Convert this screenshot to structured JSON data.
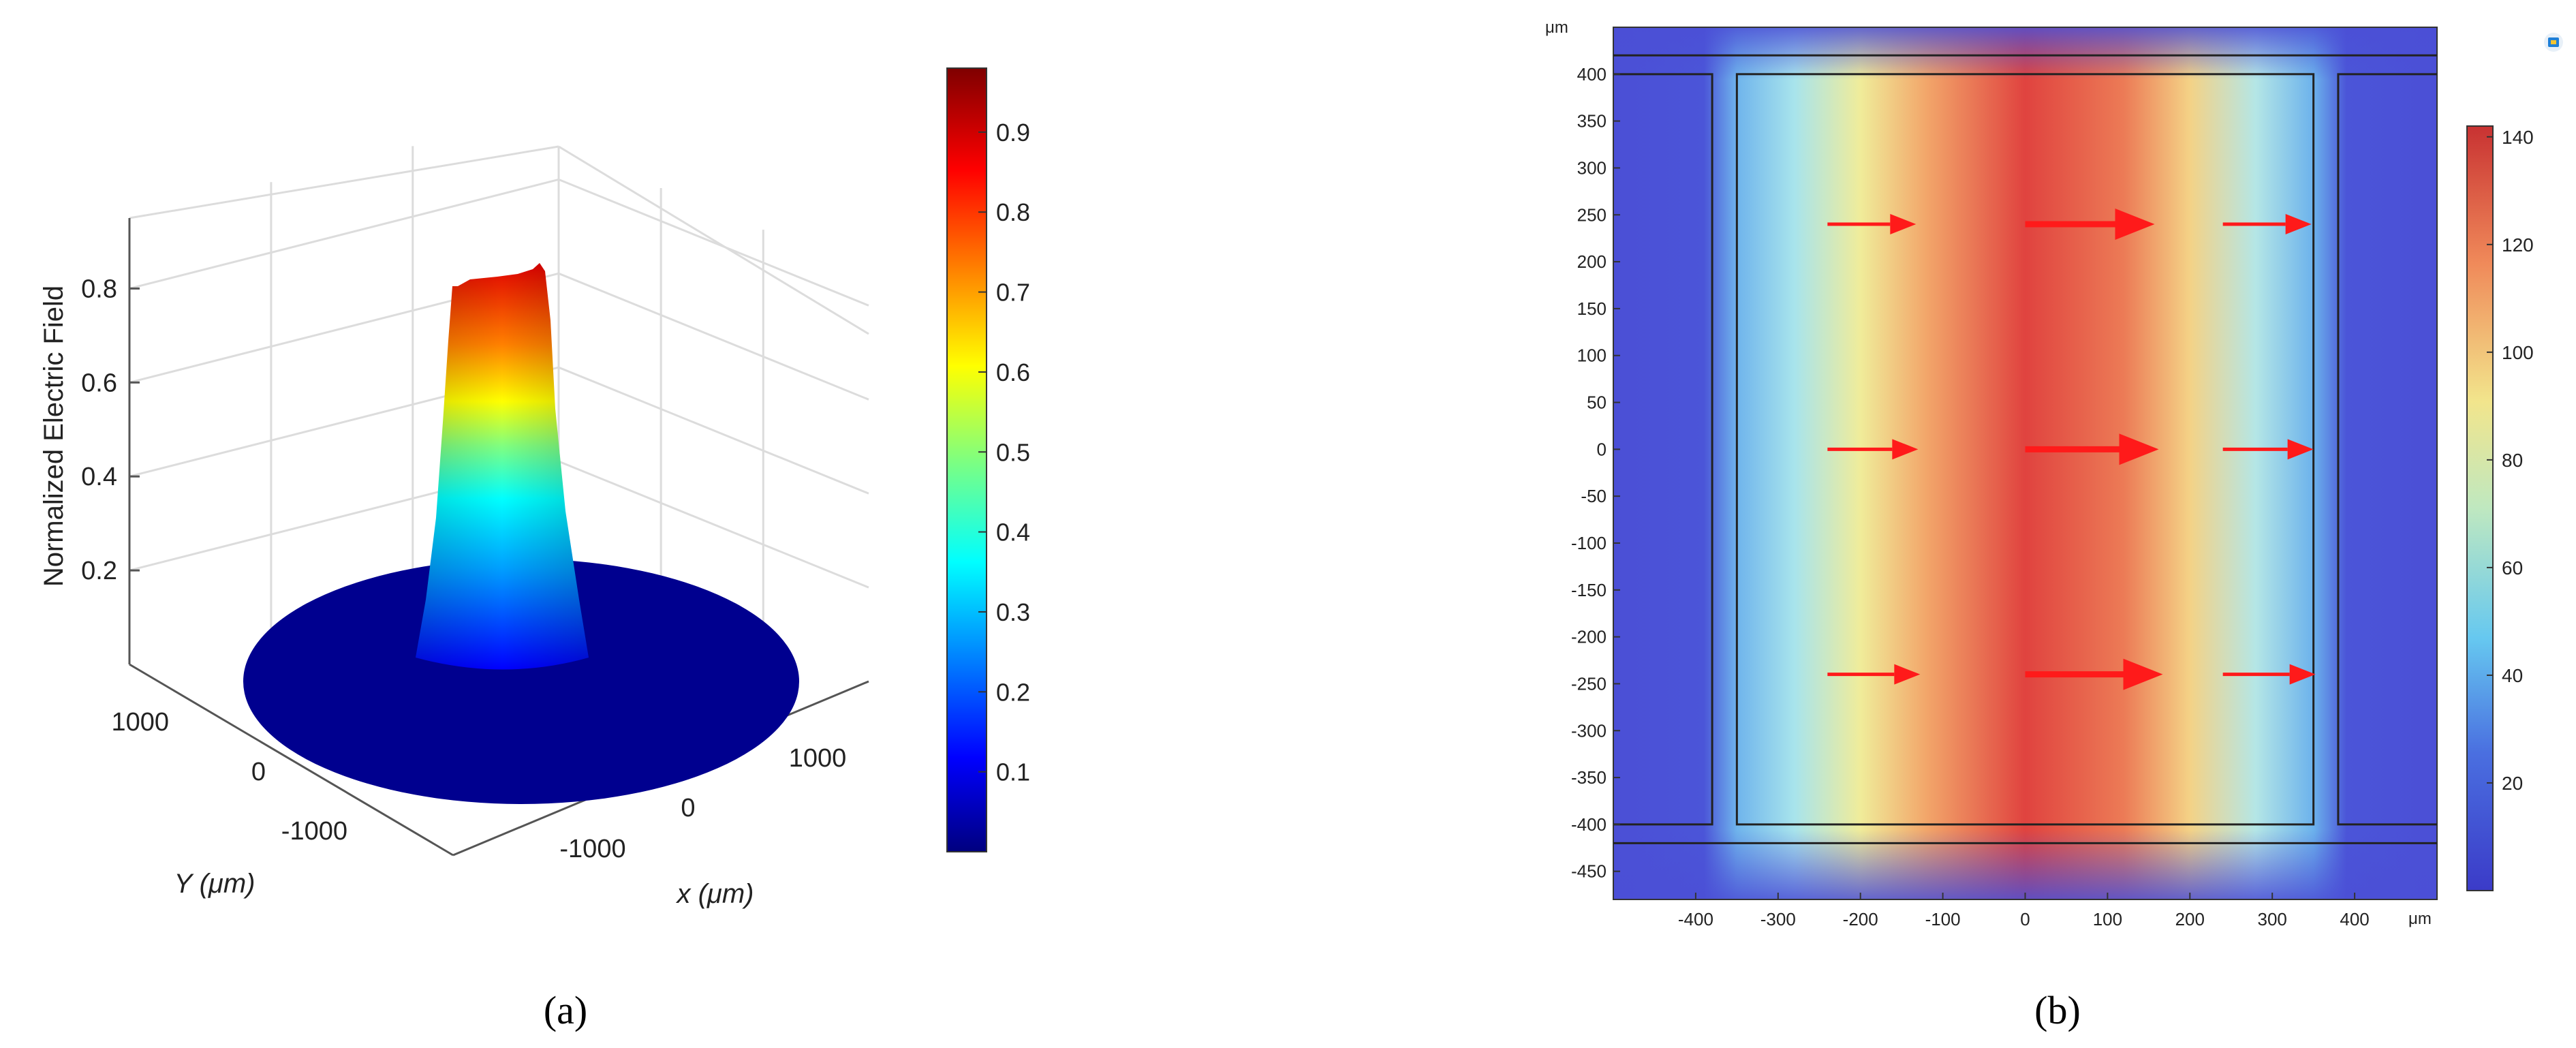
{
  "chart_data": [
    {
      "panel": "(a)",
      "type": "surface3d",
      "zlabel": "Normalized Electric Field",
      "xlabel": "x (μm)",
      "ylabel": "Y (μm)",
      "x_ticks": [
        -1000,
        0,
        1000
      ],
      "y_ticks": [
        -1000,
        0,
        1000
      ],
      "z_ticks": [
        0.2,
        0.4,
        0.6,
        0.8
      ],
      "peak_value": 0.98,
      "colorbar": {
        "colormap": "jet",
        "range": [
          0,
          0.98
        ],
        "ticks": [
          0.1,
          0.2,
          0.3,
          0.4,
          0.5,
          0.6,
          0.7,
          0.8,
          0.9
        ]
      },
      "grid": true
    },
    {
      "panel": "(b)",
      "type": "heatmap",
      "unit_label": "μm",
      "x_ticks": [
        -400,
        -300,
        -200,
        -100,
        0,
        100,
        200,
        300,
        400
      ],
      "y_ticks": [
        400,
        350,
        300,
        250,
        200,
        150,
        100,
        50,
        0,
        -50,
        -100,
        -150,
        -200,
        -250,
        -300,
        -350,
        -400,
        -450
      ],
      "xlim": [
        -500,
        500
      ],
      "ylim": [
        -480,
        450
      ],
      "colorbar": {
        "colormap": "jet",
        "range": [
          0,
          142
        ],
        "ticks": [
          20,
          40,
          60,
          80,
          100,
          120,
          140
        ]
      },
      "arrow_rows_y": [
        240,
        0,
        -240
      ],
      "arrow_columns_x": [
        -240,
        0,
        240
      ],
      "arrow_color": "#ff1a1a"
    }
  ],
  "captions": {
    "a": "(a)",
    "b": "(b)"
  }
}
